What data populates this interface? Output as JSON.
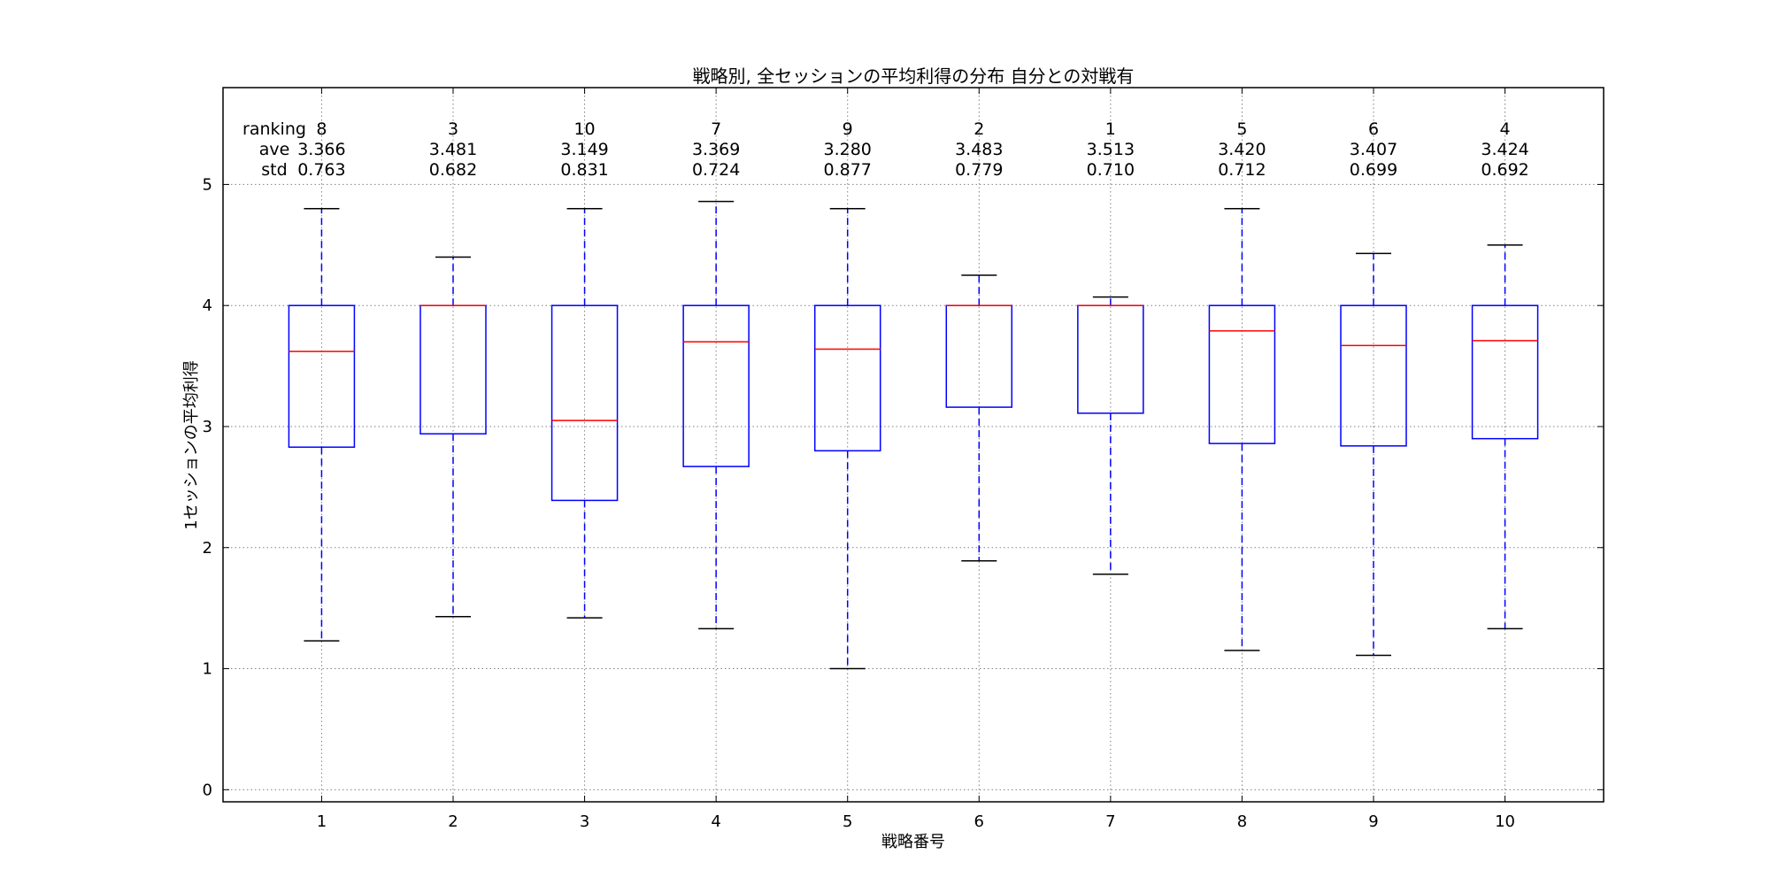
{
  "chart_data": {
    "type": "boxplot",
    "title": "戦略別, 全セッションの平均利得の分布 自分との対戦有",
    "xlabel": "戦略番号",
    "ylabel": "1セッションの平均利得",
    "ylim": [
      -0.1,
      5.8
    ],
    "yticks": [
      "0",
      "1",
      "2",
      "3",
      "4",
      "5"
    ],
    "grid": true,
    "colors": {
      "box": "#0000ff",
      "median": "#ff0000",
      "whisker": "#0000ff",
      "cap": "#000000",
      "grid": "#808080"
    },
    "stats_labels": {
      "ranking": "ranking",
      "ave": "ave",
      "std": "std"
    },
    "categories": [
      "1",
      "2",
      "3",
      "4",
      "5",
      "6",
      "7",
      "8",
      "9",
      "10"
    ],
    "boxes": [
      {
        "whislo": 1.23,
        "q1": 2.83,
        "med": 3.62,
        "q3": 4.0,
        "whishi": 4.8,
        "ranking": "8",
        "ave": "3.366",
        "std": "0.763"
      },
      {
        "whislo": 1.43,
        "q1": 2.94,
        "med": 4.0,
        "q3": 4.0,
        "whishi": 4.4,
        "ranking": "3",
        "ave": "3.481",
        "std": "0.682"
      },
      {
        "whislo": 1.42,
        "q1": 2.39,
        "med": 3.05,
        "q3": 4.0,
        "whishi": 4.8,
        "ranking": "10",
        "ave": "3.149",
        "std": "0.831"
      },
      {
        "whislo": 1.33,
        "q1": 2.67,
        "med": 3.7,
        "q3": 4.0,
        "whishi": 4.86,
        "ranking": "7",
        "ave": "3.369",
        "std": "0.724"
      },
      {
        "whislo": 1.0,
        "q1": 2.8,
        "med": 3.64,
        "q3": 4.0,
        "whishi": 4.8,
        "ranking": "9",
        "ave": "3.280",
        "std": "0.877"
      },
      {
        "whislo": 1.89,
        "q1": 3.16,
        "med": 4.0,
        "q3": 4.0,
        "whishi": 4.25,
        "ranking": "2",
        "ave": "3.483",
        "std": "0.779"
      },
      {
        "whislo": 1.78,
        "q1": 3.11,
        "med": 4.0,
        "q3": 4.0,
        "whishi": 4.07,
        "ranking": "1",
        "ave": "3.513",
        "std": "0.710"
      },
      {
        "whislo": 1.15,
        "q1": 2.86,
        "med": 3.79,
        "q3": 4.0,
        "whishi": 4.8,
        "ranking": "5",
        "ave": "3.420",
        "std": "0.712"
      },
      {
        "whislo": 1.11,
        "q1": 2.84,
        "med": 3.67,
        "q3": 4.0,
        "whishi": 4.43,
        "ranking": "6",
        "ave": "3.407",
        "std": "0.699"
      },
      {
        "whislo": 1.33,
        "q1": 2.9,
        "med": 3.71,
        "q3": 4.0,
        "whishi": 4.5,
        "ranking": "4",
        "ave": "3.424",
        "std": "0.692"
      }
    ]
  }
}
